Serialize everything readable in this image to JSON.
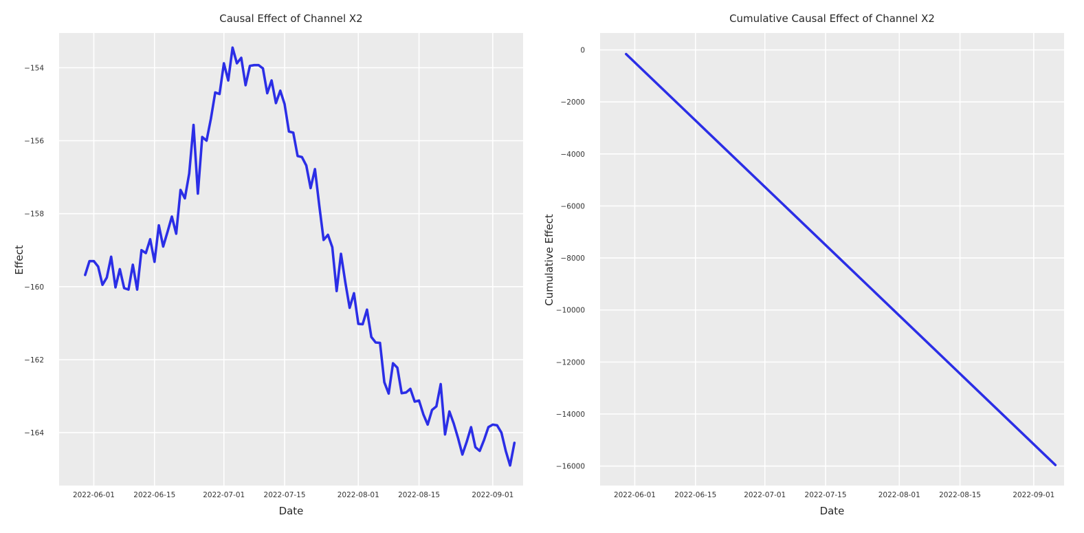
{
  "chart_data": [
    {
      "type": "line",
      "title": "Causal Effect of Channel X2",
      "xlabel": "Date",
      "ylabel": "Effect",
      "xlim": [
        "2022-05-24",
        "2022-09-08"
      ],
      "ylim": [
        -165.45,
        -153.05
      ],
      "xticks": [
        "2022-06-01",
        "2022-06-15",
        "2022-07-01",
        "2022-07-15",
        "2022-08-01",
        "2022-08-15",
        "2022-09-01"
      ],
      "yticks": [
        -154,
        -156,
        -158,
        -160,
        -162,
        -164
      ],
      "ytick_labels": [
        "−154",
        "−156",
        "−158",
        "−160",
        "−162",
        "−164"
      ],
      "grid": true,
      "color": "#2b2ee6",
      "series": [
        {
          "x_start": "2022-05-30",
          "x_step_days": 1,
          "values": [
            -159.68,
            -159.3,
            -159.3,
            -159.45,
            -159.95,
            -159.75,
            -159.18,
            -160.02,
            -159.52,
            -160.04,
            -160.08,
            -159.4,
            -160.08,
            -159.0,
            -159.08,
            -158.7,
            -159.32,
            -158.32,
            -158.9,
            -158.5,
            -158.08,
            -158.55,
            -157.35,
            -157.58,
            -156.9,
            -155.57,
            -157.45,
            -155.9,
            -156.0,
            -155.4,
            -154.68,
            -154.72,
            -153.88,
            -154.35,
            -153.45,
            -153.88,
            -153.73,
            -154.48,
            -153.95,
            -153.93,
            -153.93,
            -154.02,
            -154.7,
            -154.35,
            -154.97,
            -154.63,
            -155.0,
            -155.75,
            -155.78,
            -156.42,
            -156.45,
            -156.68,
            -157.3,
            -156.78,
            -157.78,
            -158.72,
            -158.58,
            -158.92,
            -160.12,
            -159.1,
            -159.88,
            -160.58,
            -160.18,
            -161.02,
            -161.03,
            -160.63,
            -161.38,
            -161.53,
            -161.54,
            -162.62,
            -162.93,
            -162.1,
            -162.22,
            -162.92,
            -162.9,
            -162.8,
            -163.15,
            -163.12,
            -163.5,
            -163.78,
            -163.38,
            -163.28,
            -162.67,
            -164.05,
            -163.42,
            -163.75,
            -164.15,
            -164.6,
            -164.25,
            -163.85,
            -164.4,
            -164.5,
            -164.2,
            -163.85,
            -163.78,
            -163.8,
            -164.0,
            -164.5,
            -164.9,
            -164.28
          ]
        }
      ]
    },
    {
      "type": "line",
      "title": "Cumulative Causal Effect of Channel X2",
      "xlabel": "Date",
      "ylabel": "Cumulative Effect",
      "xlim": [
        "2022-05-24",
        "2022-09-08"
      ],
      "ylim": [
        -16750,
        650
      ],
      "xticks": [
        "2022-06-01",
        "2022-06-15",
        "2022-07-01",
        "2022-07-15",
        "2022-08-01",
        "2022-08-15",
        "2022-09-01"
      ],
      "yticks": [
        0,
        -2000,
        -4000,
        -6000,
        -8000,
        -10000,
        -12000,
        -14000,
        -16000
      ],
      "ytick_labels": [
        "0",
        "−2000",
        "−4000",
        "−6000",
        "−8000",
        "−10000",
        "−12000",
        "−14000",
        "−16000"
      ],
      "grid": true,
      "color": "#2b2ee6",
      "series": [
        {
          "x": [
            "2022-05-30",
            "2022-09-06"
          ],
          "values": [
            -160,
            -15960
          ]
        }
      ]
    }
  ]
}
